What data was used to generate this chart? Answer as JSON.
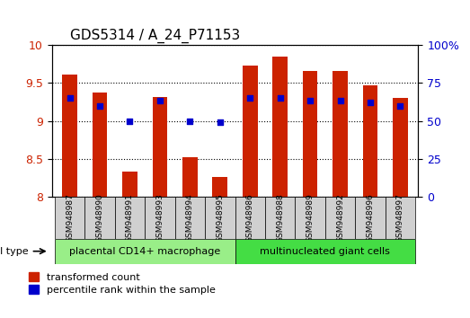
{
  "title": "GDS5314 / A_24_P71153",
  "samples": [
    "GSM948987",
    "GSM948990",
    "GSM948991",
    "GSM948993",
    "GSM948994",
    "GSM948995",
    "GSM948986",
    "GSM948988",
    "GSM948989",
    "GSM948992",
    "GSM948996",
    "GSM948997"
  ],
  "bar_values": [
    9.61,
    9.37,
    8.33,
    9.31,
    8.52,
    8.27,
    9.72,
    9.84,
    9.65,
    9.65,
    9.47,
    9.3
  ],
  "dot_values_pct": [
    65,
    60,
    50,
    63,
    50,
    49,
    65,
    65,
    63,
    63,
    62,
    60
  ],
  "bar_color": "#cc2200",
  "dot_color": "#0000cc",
  "ylim": [
    8.0,
    10.0
  ],
  "y2lim": [
    0,
    100
  ],
  "yticks": [
    8.0,
    8.5,
    9.0,
    9.5,
    10.0
  ],
  "y2ticks": [
    0,
    25,
    50,
    75,
    100
  ],
  "group1_label": "placental CD14+ macrophage",
  "group2_label": "multinucleated giant cells",
  "group1_count": 6,
  "group2_count": 6,
  "group1_color": "#99ee88",
  "group2_color": "#44dd44",
  "cell_type_label": "cell type",
  "legend_bar_label": "transformed count",
  "legend_dot_label": "percentile rank within the sample",
  "bar_width": 0.5,
  "grid_color": "#000000",
  "tick_label_color_left": "#cc2200",
  "tick_label_color_right": "#0000cc",
  "sample_box_color": "#d0d0d0"
}
